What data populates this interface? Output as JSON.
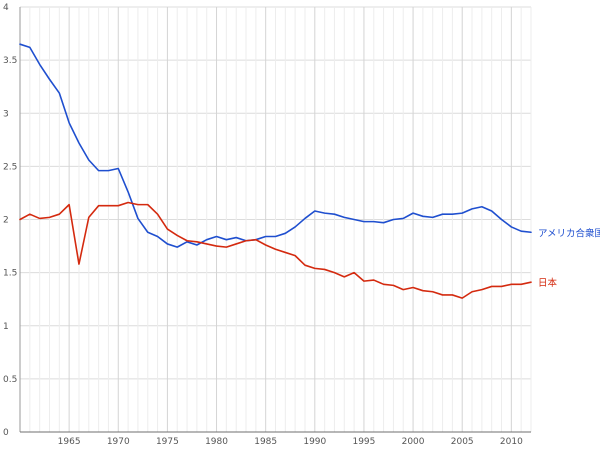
{
  "chart_data": {
    "type": "line",
    "title": "",
    "xlabel": "",
    "ylabel": "",
    "xlim": [
      1960,
      2012
    ],
    "ylim": [
      0,
      4
    ],
    "x_ticks": [
      1965,
      1970,
      1975,
      1980,
      1985,
      1990,
      1995,
      2000,
      2005,
      2010
    ],
    "x_tick_labels": [
      "1965",
      "1970",
      "1975",
      "1980",
      "1985",
      "1990",
      "1995",
      "2000",
      "2005",
      "2010"
    ],
    "y_ticks": [
      0,
      0.5,
      1,
      1.5,
      2,
      2.5,
      3,
      3.5,
      4
    ],
    "y_tick_labels": [
      "0",
      "0.5",
      "1",
      "1.5",
      "2",
      "2.5",
      "3",
      "3.5",
      "4"
    ],
    "grid": true,
    "legend": "end-of-line labels",
    "x": [
      1960,
      1961,
      1962,
      1963,
      1964,
      1965,
      1966,
      1967,
      1968,
      1969,
      1970,
      1971,
      1972,
      1973,
      1974,
      1975,
      1976,
      1977,
      1978,
      1979,
      1980,
      1981,
      1982,
      1983,
      1984,
      1985,
      1986,
      1987,
      1988,
      1989,
      1990,
      1991,
      1992,
      1993,
      1994,
      1995,
      1996,
      1997,
      1998,
      1999,
      2000,
      2001,
      2002,
      2003,
      2004,
      2005,
      2006,
      2007,
      2008,
      2009,
      2010,
      2011,
      2012
    ],
    "series": [
      {
        "name": "アメリカ合衆国",
        "color": "#1f4fcf",
        "values": [
          3.65,
          3.62,
          3.46,
          3.32,
          3.19,
          2.91,
          2.72,
          2.56,
          2.46,
          2.46,
          2.48,
          2.26,
          2.01,
          1.88,
          1.84,
          1.77,
          1.74,
          1.79,
          1.76,
          1.81,
          1.84,
          1.81,
          1.83,
          1.8,
          1.81,
          1.84,
          1.84,
          1.87,
          1.93,
          2.01,
          2.08,
          2.06,
          2.05,
          2.02,
          2.0,
          1.98,
          1.98,
          1.97,
          2.0,
          2.01,
          2.06,
          2.03,
          2.02,
          2.05,
          2.05,
          2.06,
          2.1,
          2.12,
          2.08,
          2.0,
          1.93,
          1.89,
          1.88
        ]
      },
      {
        "name": "日本",
        "color": "#d42a0f",
        "values": [
          2.0,
          2.05,
          2.01,
          2.02,
          2.05,
          2.14,
          1.58,
          2.02,
          2.13,
          2.13,
          2.13,
          2.16,
          2.14,
          2.14,
          2.05,
          1.91,
          1.85,
          1.8,
          1.79,
          1.77,
          1.75,
          1.74,
          1.77,
          1.8,
          1.81,
          1.76,
          1.72,
          1.69,
          1.66,
          1.57,
          1.54,
          1.53,
          1.5,
          1.46,
          1.5,
          1.42,
          1.43,
          1.39,
          1.38,
          1.34,
          1.36,
          1.33,
          1.32,
          1.29,
          1.29,
          1.26,
          1.32,
          1.34,
          1.37,
          1.37,
          1.39,
          1.39,
          1.41
        ]
      }
    ]
  }
}
